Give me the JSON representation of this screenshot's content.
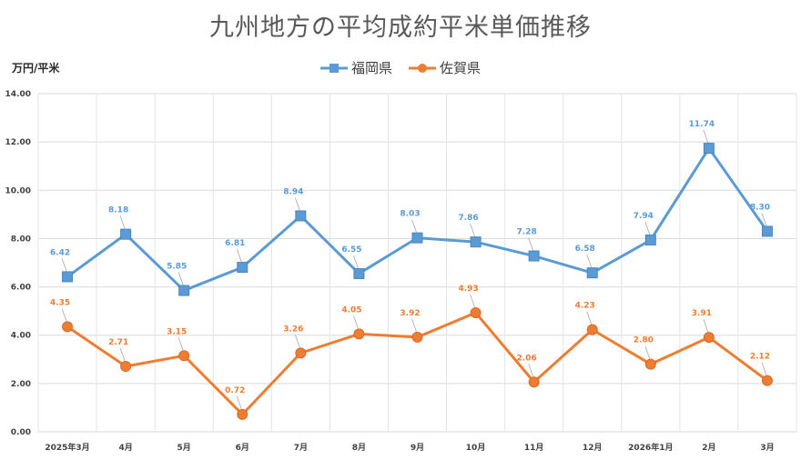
{
  "chart_data": {
    "type": "line",
    "title": "九州地方の平均成約平米単価推移",
    "ylabel": "万円/平米",
    "ylim": [
      0,
      14
    ],
    "yticks": [
      "0.00",
      "2.00",
      "4.00",
      "6.00",
      "8.00",
      "10.00",
      "12.00",
      "14.00"
    ],
    "categories": [
      "2025年3月",
      "4月",
      "5月",
      "6月",
      "7月",
      "8月",
      "9月",
      "10月",
      "11月",
      "12月",
      "2026年1月",
      "2月",
      "3月"
    ],
    "series": [
      {
        "name": "福岡県",
        "color": "#5B9BD5",
        "marker": "square",
        "values": [
          6.42,
          8.18,
          5.85,
          6.81,
          8.94,
          6.55,
          8.03,
          7.86,
          7.28,
          6.58,
          7.94,
          11.74,
          8.3
        ],
        "labels": [
          "6.42",
          "8.18",
          "5.85",
          "6.81",
          "8.94",
          "6.55",
          "8.03",
          "7.86",
          "7.28",
          "6.58",
          "7.94",
          "11.74",
          "8.30"
        ]
      },
      {
        "name": "佐賀県",
        "color": "#ED7D31",
        "marker": "circle",
        "values": [
          4.35,
          2.71,
          3.15,
          0.72,
          3.26,
          4.05,
          3.92,
          4.93,
          2.06,
          4.23,
          2.8,
          3.91,
          2.12
        ],
        "labels": [
          "4.35",
          "2.71",
          "3.15",
          "0.72",
          "3.26",
          "4.05",
          "3.92",
          "4.93",
          "2.06",
          "4.23",
          "2.80",
          "3.91",
          "2.12"
        ]
      }
    ],
    "legend": "top-center",
    "grid": true
  }
}
